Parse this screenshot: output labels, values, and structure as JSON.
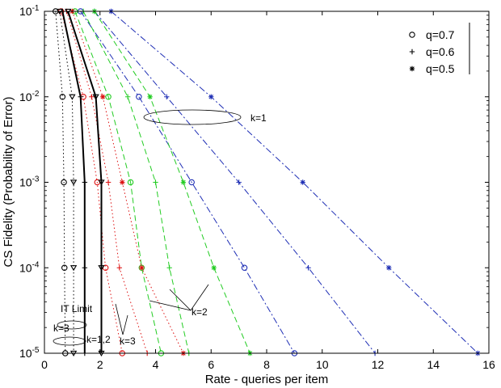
{
  "chart_data": {
    "type": "line",
    "xlabel": "Rate - queries per item",
    "ylabel": "CS Fidelity (Probability of Error)",
    "xlim": [
      0,
      16
    ],
    "ylim": [
      1e-05,
      0.1
    ],
    "yscale": "log",
    "xticks": [
      "0",
      "2",
      "4",
      "6",
      "8",
      "10",
      "12",
      "14",
      "16"
    ],
    "yticks": [
      {
        "base": "10",
        "exp": "-1",
        "value": 0.1
      },
      {
        "base": "10",
        "exp": "-2",
        "value": 0.01
      },
      {
        "base": "10",
        "exp": "-3",
        "value": 0.001
      },
      {
        "base": "10",
        "exp": "-4",
        "value": 0.0001
      },
      {
        "base": "10",
        "exp": "-5",
        "value": 1e-05
      }
    ],
    "grid": false,
    "legend": {
      "position": "top-right",
      "entries": [
        {
          "marker": "o",
          "label": "q=0.7"
        },
        {
          "marker": "+",
          "label": "q=0.6"
        },
        {
          "marker": "*",
          "label": "q=0.5"
        }
      ]
    },
    "series": [
      {
        "group": "k=1",
        "marker": "o",
        "color": "#1f2fb5",
        "style": "dashdot",
        "x": [
          1.3,
          3.4,
          5.3,
          7.2,
          9.0
        ],
        "y": [
          0.1,
          0.01,
          0.001,
          0.0001,
          1e-05
        ]
      },
      {
        "group": "k=1",
        "marker": "+",
        "color": "#1f2fb5",
        "style": "dashdot",
        "x": [
          1.8,
          4.4,
          7.0,
          9.5,
          11.9
        ],
        "y": [
          0.1,
          0.01,
          0.001,
          0.0001,
          1e-05
        ]
      },
      {
        "group": "k=1",
        "marker": "*",
        "color": "#1f2fb5",
        "style": "dashdot",
        "x": [
          2.4,
          6.0,
          9.3,
          12.4,
          15.6
        ],
        "y": [
          0.1,
          0.01,
          0.001,
          0.0001,
          1e-05
        ]
      },
      {
        "group": "k=2",
        "marker": "o",
        "color": "#22cc22",
        "style": "dashed",
        "x": [
          1.1,
          2.3,
          3.1,
          3.5,
          4.2
        ],
        "y": [
          0.1,
          0.01,
          0.001,
          0.0001,
          1e-05
        ]
      },
      {
        "group": "k=2",
        "marker": "+",
        "color": "#22cc22",
        "style": "dashed",
        "x": [
          1.4,
          3.0,
          4.0,
          4.5,
          5.2
        ],
        "y": [
          0.1,
          0.01,
          0.001,
          0.0001,
          1e-05
        ]
      },
      {
        "group": "k=2",
        "marker": "*",
        "color": "#22cc22",
        "style": "dashed",
        "x": [
          1.8,
          3.8,
          5.0,
          6.1,
          7.4
        ],
        "y": [
          0.1,
          0.01,
          0.001,
          0.0001,
          1e-05
        ]
      },
      {
        "group": "k=3",
        "marker": "o",
        "color": "#dd1111",
        "style": "dotted",
        "x": [
          0.6,
          1.4,
          1.9,
          2.2,
          2.8
        ],
        "y": [
          0.1,
          0.01,
          0.001,
          0.0001,
          1e-05
        ]
      },
      {
        "group": "k=3",
        "marker": "+",
        "color": "#dd1111",
        "style": "dotted",
        "x": [
          0.8,
          1.7,
          2.3,
          2.7,
          3.7
        ],
        "y": [
          0.1,
          0.01,
          0.001,
          0.0001,
          1e-05
        ]
      },
      {
        "group": "k=3",
        "marker": "*",
        "color": "#dd1111",
        "style": "dotted",
        "x": [
          1.0,
          2.1,
          2.8,
          3.5,
          5.0
        ],
        "y": [
          0.1,
          0.01,
          0.001,
          0.0001,
          1e-05
        ]
      },
      {
        "group": "IT Limit",
        "marker": "o",
        "color": "#000000",
        "style": "dotted",
        "x": [
          0.4,
          0.65,
          0.7,
          0.72,
          0.75
        ],
        "y": [
          0.1,
          0.01,
          0.001,
          0.0001,
          1e-05
        ]
      },
      {
        "group": "IT Limit",
        "marker": "v",
        "color": "#000000",
        "style": "dotted",
        "x": [
          0.55,
          1.0,
          1.05,
          1.05,
          1.05
        ],
        "y": [
          0.1,
          0.01,
          0.001,
          0.0001,
          1e-05
        ]
      },
      {
        "group": "IT Limit",
        "marker": "+",
        "color": "#000000",
        "style": "solid",
        "x": [
          0.65,
          1.3,
          1.45,
          1.45,
          1.45
        ],
        "y": [
          0.1,
          0.01,
          0.001,
          0.0001,
          1e-05
        ]
      },
      {
        "group": "IT Limit",
        "marker": "v",
        "color": "#000000",
        "style": "solid",
        "x": [
          0.85,
          1.85,
          2.05,
          2.05,
          2.05
        ],
        "y": [
          0.1,
          0.01,
          0.001,
          0.0001,
          1e-05
        ]
      }
    ],
    "annotations": [
      "k=1",
      "k=2",
      "k=3",
      "k=3",
      "k=1,2",
      "IT Limit"
    ]
  }
}
